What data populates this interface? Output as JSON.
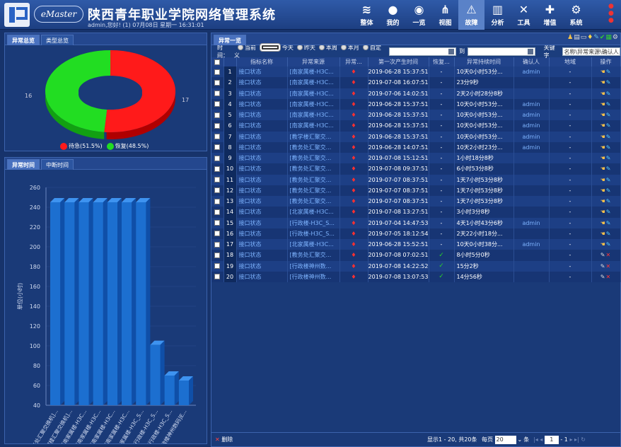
{
  "header": {
    "brand": "eMaster",
    "title": "陕西青年职业学院网络管理系统",
    "subtitle": "admin,您好! (1) 07月08日 星期一 16:31:01",
    "nav": [
      {
        "label": "整体",
        "icon": "layers-icon",
        "glyph": "≋"
      },
      {
        "label": "我的",
        "icon": "user-icon",
        "glyph": "●"
      },
      {
        "label": "一览",
        "icon": "overview-icon",
        "glyph": "◉"
      },
      {
        "label": "视图",
        "icon": "topology-icon",
        "glyph": "⋔"
      },
      {
        "label": "故障",
        "icon": "warning-icon",
        "glyph": "⚠"
      },
      {
        "label": "分析",
        "icon": "bar-chart-icon",
        "glyph": "▥"
      },
      {
        "label": "工具",
        "icon": "tools-icon",
        "glyph": "✕"
      },
      {
        "label": "增值",
        "icon": "plus-icon",
        "glyph": "✚"
      },
      {
        "label": "系统",
        "icon": "gear-icon",
        "glyph": "⚙"
      }
    ],
    "active_nav": 4
  },
  "left_top": {
    "tabs": [
      "异常总览",
      "类型总览"
    ],
    "donut_left_label": "16",
    "donut_right_label": "17",
    "legend": [
      {
        "label": "待急(51.5%)",
        "color": "#ff1a1a"
      },
      {
        "label": "恢复(48.5%)",
        "color": "#22dd22"
      }
    ]
  },
  "left_bottom": {
    "tabs": [
      "异常时间",
      "中断时间"
    ]
  },
  "chart_data": [
    {
      "type": "pie",
      "labels": [
        "待急",
        "恢复"
      ],
      "values": [
        17,
        16
      ],
      "percent": [
        51.5,
        48.5
      ],
      "colors": [
        "#ff1a1a",
        "#22dd22"
      ]
    },
    {
      "type": "bar",
      "ylabel": "单位(小时)",
      "ylim": [
        40,
        260
      ],
      "yticks": [
        40,
        60,
        80,
        100,
        120,
        140,
        160,
        180,
        200,
        220,
        240,
        260
      ],
      "categories": [
        "[教务处汇聚交换机]...",
        "[教学楼汇聚交换机]...",
        "[南家属楼-H3C...",
        "[南家属楼-H3C...",
        "[南家属楼-H3C...",
        "[南家属楼-H3C...",
        "[北家属楼-H3C_S...",
        "[行政楼-H3C_S...",
        "[行政楼-H3C_S...",
        "[行政楼神州数码]E..."
      ],
      "values": [
        245,
        245,
        245,
        245,
        245,
        245,
        245,
        101,
        70,
        65
      ],
      "color": "#1c6fd0"
    }
  ],
  "right": {
    "tabs": [
      "异常一览"
    ],
    "filter": {
      "time_label": "时间：",
      "options": [
        "当前",
        "今天",
        "昨天",
        "本周",
        "本月",
        "自定义"
      ],
      "selected": 1,
      "to_label": "到",
      "keyword_label": "关键字",
      "keyword_placeholder": "名称\\异常来源\\确认人"
    },
    "columns": [
      "",
      "",
      "指标名称",
      "异常来源",
      "异常...",
      "第一次产生时间",
      "恢复...",
      "异常持续时间",
      "确认人",
      "地域",
      "操作"
    ],
    "rows": [
      {
        "n": "1",
        "name": "接口状态",
        "src": "[南家属楼-H3C...",
        "time": "2019-06-28 15:37:51",
        "rec": "-",
        "dur": "10天0小时53分...",
        "who": "admin",
        "area": "-"
      },
      {
        "n": "2",
        "name": "接口状态",
        "src": "[南家属楼-H3C...",
        "time": "2019-07-08 16:07:51",
        "rec": "-",
        "dur": "23分9秒",
        "who": "",
        "area": "-"
      },
      {
        "n": "3",
        "name": "接口状态",
        "src": "[南家属楼-H3C...",
        "time": "2019-07-06 14:02:51",
        "rec": "-",
        "dur": "2天2小时28分8秒",
        "who": "",
        "area": "-"
      },
      {
        "n": "4",
        "name": "接口状态",
        "src": "[南家属楼-H3C...",
        "time": "2019-06-28 15:37:51",
        "rec": "-",
        "dur": "10天0小时53分...",
        "who": "admin",
        "area": "-"
      },
      {
        "n": "5",
        "name": "接口状态",
        "src": "[南家属楼-H3C...",
        "time": "2019-06-28 15:37:51",
        "rec": "-",
        "dur": "10天0小时53分...",
        "who": "admin",
        "area": "-"
      },
      {
        "n": "6",
        "name": "接口状态",
        "src": "[南家属楼-H3C...",
        "time": "2019-06-28 15:37:51",
        "rec": "-",
        "dur": "10天0小时53分...",
        "who": "admin",
        "area": "-"
      },
      {
        "n": "7",
        "name": "接口状态",
        "src": "[教学楼汇聚交...",
        "time": "2019-06-28 15:37:51",
        "rec": "-",
        "dur": "10天0小时53分...",
        "who": "admin",
        "area": "-"
      },
      {
        "n": "8",
        "name": "接口状态",
        "src": "[教务处汇聚交...",
        "time": "2019-06-28 14:07:51",
        "rec": "-",
        "dur": "10天2小时23分...",
        "who": "admin",
        "area": "-"
      },
      {
        "n": "9",
        "name": "接口状态",
        "src": "[教务处汇聚交...",
        "time": "2019-07-08 15:12:51",
        "rec": "-",
        "dur": "1小时18分8秒",
        "who": "",
        "area": "-"
      },
      {
        "n": "10",
        "name": "接口状态",
        "src": "[教务处汇聚交...",
        "time": "2019-07-08 09:37:51",
        "rec": "-",
        "dur": "6小时53分8秒",
        "who": "",
        "area": "-"
      },
      {
        "n": "11",
        "name": "接口状态",
        "src": "[教务处汇聚交...",
        "time": "2019-07-07 08:37:51",
        "rec": "-",
        "dur": "1天7小时53分8秒",
        "who": "",
        "area": "-"
      },
      {
        "n": "12",
        "name": "接口状态",
        "src": "[教务处汇聚交...",
        "time": "2019-07-07 08:37:51",
        "rec": "-",
        "dur": "1天7小时53分8秒",
        "who": "",
        "area": "-"
      },
      {
        "n": "13",
        "name": "接口状态",
        "src": "[教务处汇聚交...",
        "time": "2019-07-07 08:37:51",
        "rec": "-",
        "dur": "1天7小时53分8秒",
        "who": "",
        "area": "-"
      },
      {
        "n": "14",
        "name": "接口状态",
        "src": "[北家属楼-H3C...",
        "time": "2019-07-08 13:27:51",
        "rec": "-",
        "dur": "3小时3分8秒",
        "who": "",
        "area": "-"
      },
      {
        "n": "15",
        "name": "接口状态",
        "src": "[行政楼-H3C_S...",
        "time": "2019-07-04 14:47:53",
        "rec": "-",
        "dur": "4天1小时43分6秒",
        "who": "admin",
        "area": "-"
      },
      {
        "n": "16",
        "name": "接口状态",
        "src": "[行政楼-H3C_S...",
        "time": "2019-07-05 18:12:54",
        "rec": "-",
        "dur": "2天22小时18分...",
        "who": "",
        "area": "-"
      },
      {
        "n": "17",
        "name": "接口状态",
        "src": "[北家属楼-H3C...",
        "time": "2019-06-28 15:52:51",
        "rec": "-",
        "dur": "10天0小时38分...",
        "who": "admin",
        "area": "-"
      },
      {
        "n": "18",
        "name": "接口状态",
        "src": "[教务处汇聚交...",
        "time": "2019-07-08 07:02:51",
        "rec": "✓",
        "dur": "8小时5分0秒",
        "who": "",
        "area": "-"
      },
      {
        "n": "19",
        "name": "接口状态",
        "src": "[行政楼神州数...",
        "time": "2019-07-08 14:22:52",
        "rec": "✓",
        "dur": "15分2秒",
        "who": "",
        "area": "-"
      },
      {
        "n": "20",
        "name": "接口状态",
        "src": "[行政楼神州数...",
        "time": "2019-07-08 13:07:53",
        "rec": "✓",
        "dur": "14分56秒",
        "who": "",
        "area": "-"
      }
    ],
    "footer": {
      "delete_label": "删除",
      "page_info": "显示1 - 20, 共20条",
      "per_page_label": "每页",
      "per_page": "20",
      "per_page_unit": "条",
      "page": "1",
      "page_sep": "- 1"
    }
  }
}
